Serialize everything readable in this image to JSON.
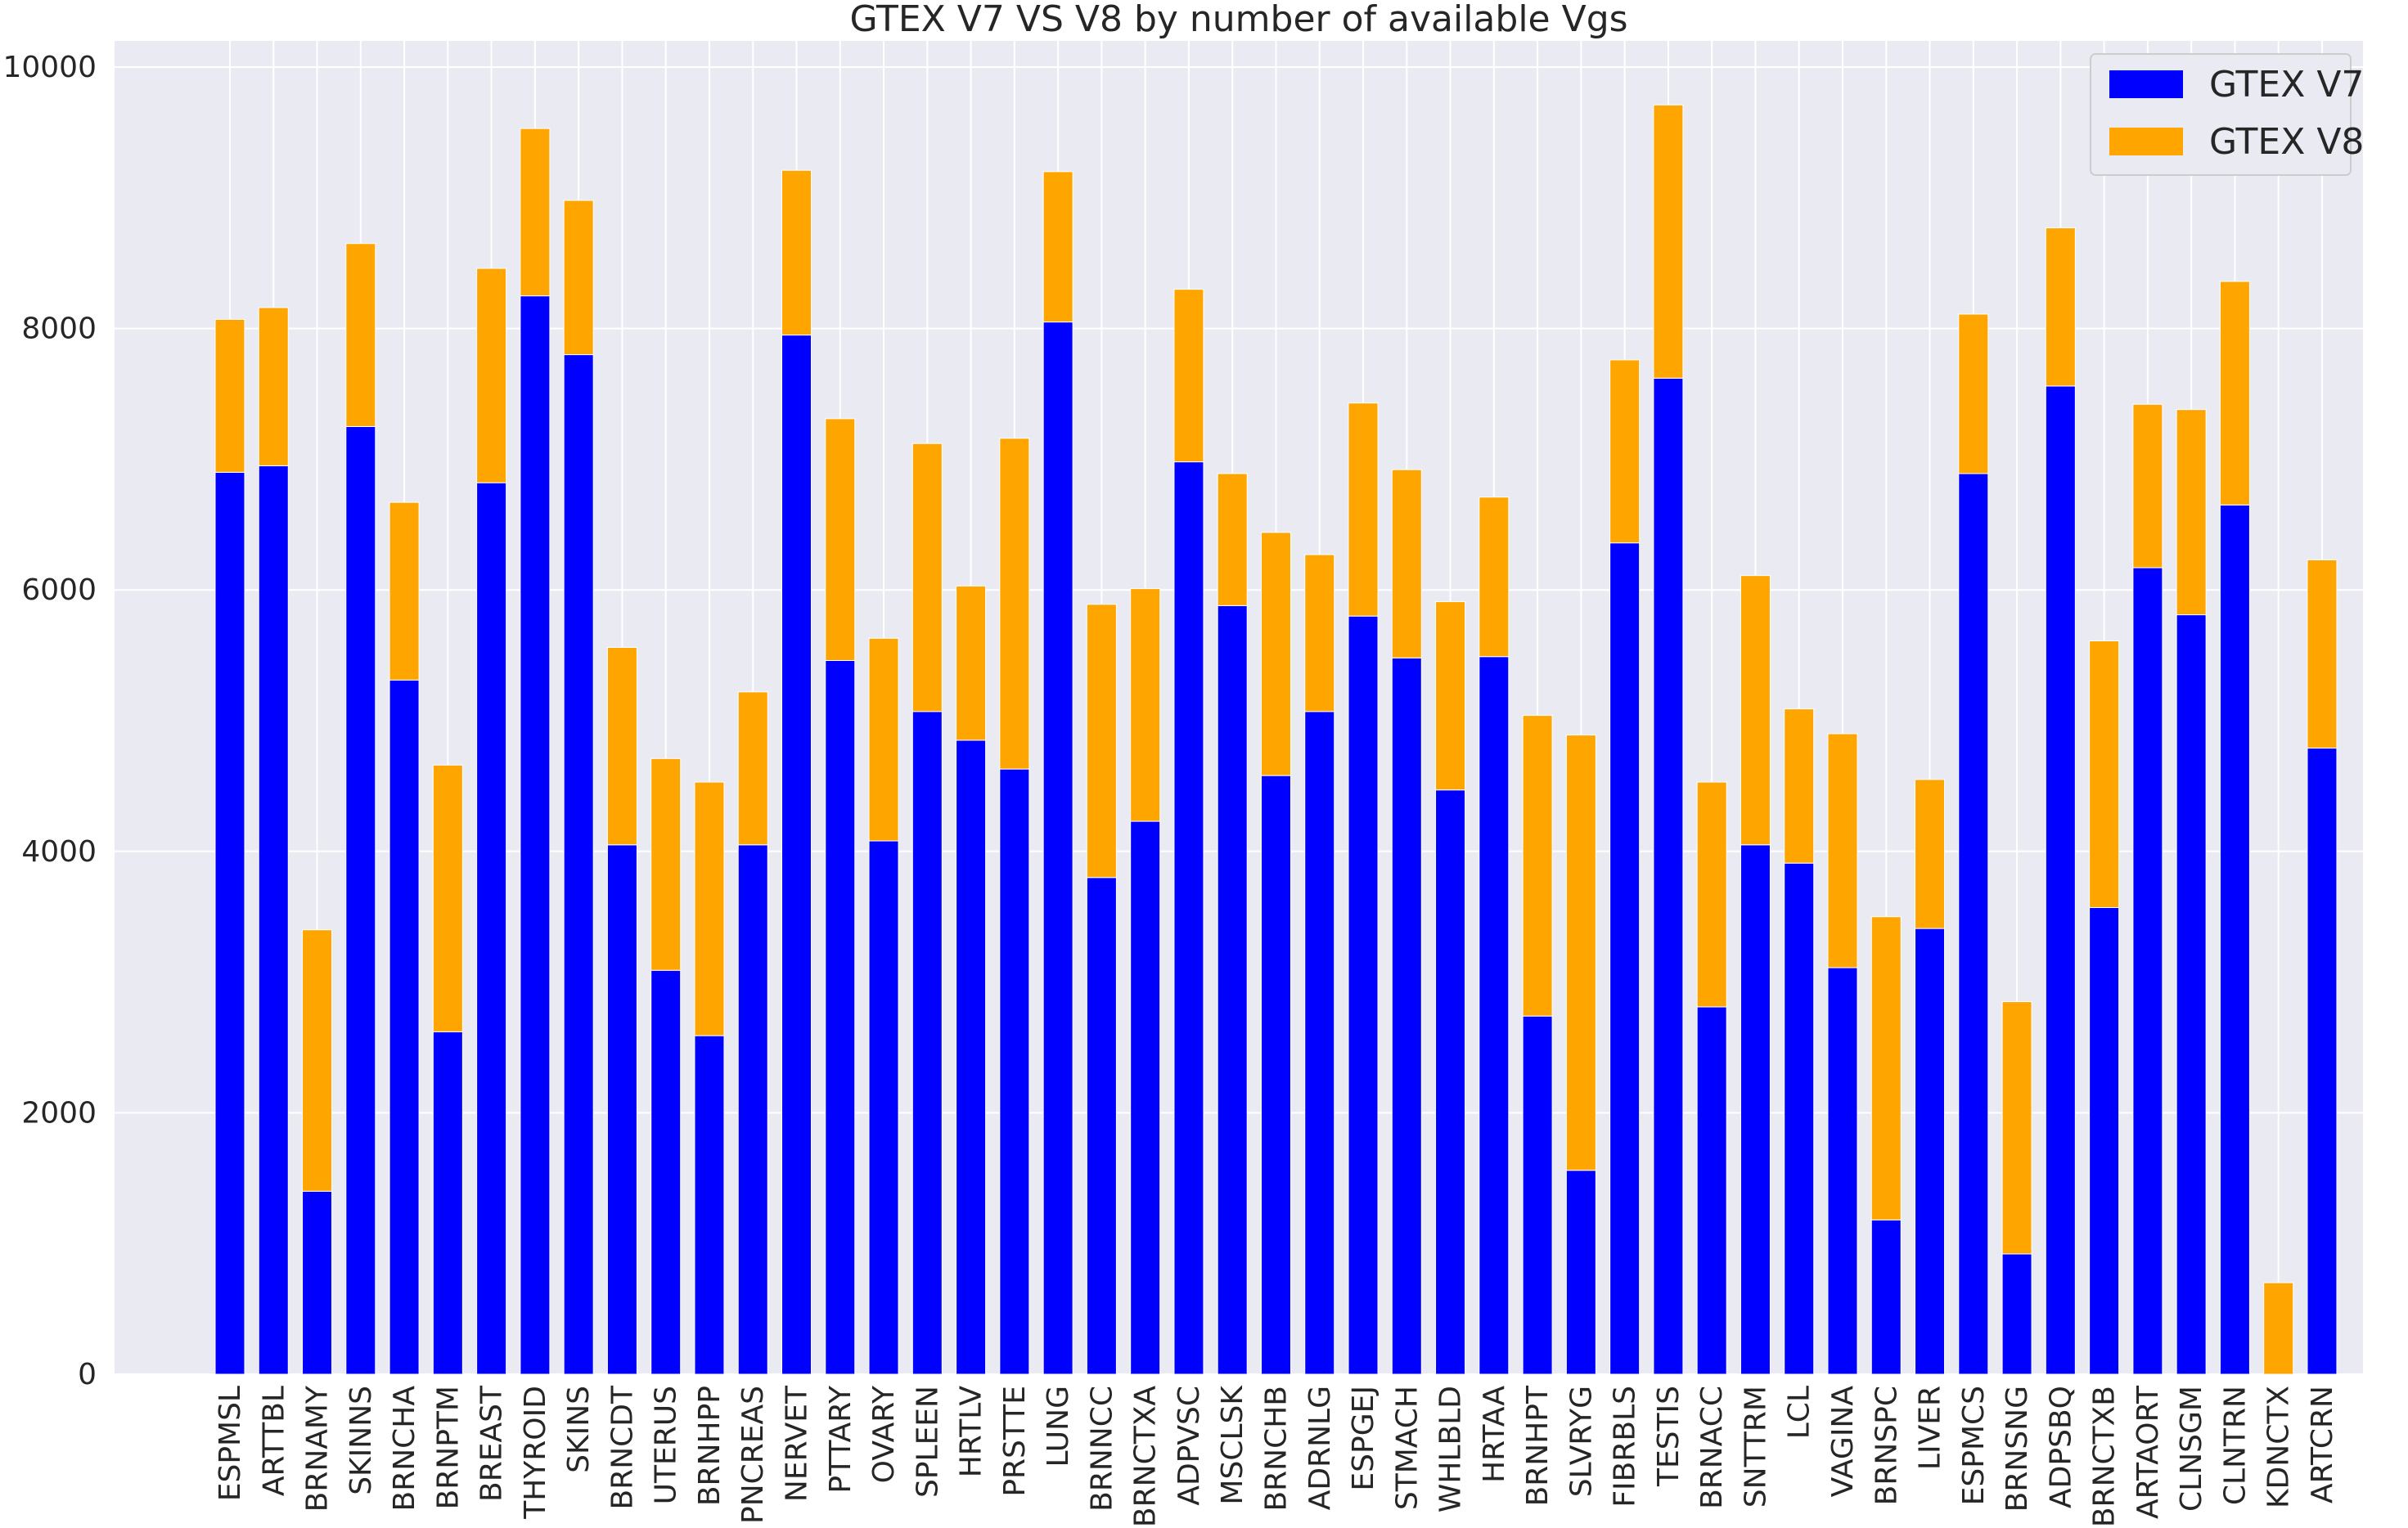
{
  "chart_data": {
    "type": "bar",
    "stacked": true,
    "title": "GTEX V7 VS V8 by number of available Vgs",
    "xlabel": "",
    "ylabel": "",
    "ylim": [
      0,
      10000
    ],
    "yticks": [
      0,
      2000,
      4000,
      6000,
      8000,
      10000
    ],
    "grid": true,
    "legend_position": "top-right",
    "categories": [
      "ESPMSL",
      "ARTTBL",
      "BRNAMY",
      "SKINNS",
      "BRNCHA",
      "BRNPTM",
      "BREAST",
      "THYROID",
      "SKINS",
      "BRNCDT",
      "UTERUS",
      "BRNHPP",
      "PNCREAS",
      "NERVET",
      "PTTARY",
      "OVARY",
      "SPLEEN",
      "HRTLV",
      "PRSTTE",
      "LUNG",
      "BRNNCC",
      "BRNCTXA",
      "ADPVSC",
      "MSCLSK",
      "BRNCHB",
      "ADRNLG",
      "ESPGEJ",
      "STMACH",
      "WHLBLD",
      "HRTAA",
      "BRNHPT",
      "SLVRYG",
      "FIBRBLS",
      "TESTIS",
      "BRNACC",
      "SNTTRM",
      "LCL",
      "VAGINA",
      "BRNSPC",
      "LIVER",
      "ESPMCS",
      "BRNSNG",
      "ADPSBQ",
      "BRNCTXB",
      "ARTAORT",
      "CLNSGM",
      "CLNTRN",
      "KDNCTX",
      "ARTCRN"
    ],
    "series": [
      {
        "name": "GTEX V7",
        "color": "#0000ff",
        "values": [
          6900,
          6950,
          1400,
          7250,
          5310,
          2620,
          6820,
          8250,
          7800,
          4050,
          3090,
          2590,
          4050,
          7950,
          5460,
          4080,
          5070,
          4850,
          4630,
          8050,
          3800,
          4230,
          6980,
          5880,
          4580,
          5070,
          5800,
          5480,
          4470,
          5490,
          2740,
          1560,
          6360,
          7620,
          2810,
          4050,
          3910,
          3110,
          1180,
          3410,
          6890,
          920,
          7560,
          3570,
          6170,
          5810,
          6650,
          0,
          4790
        ]
      },
      {
        "name": "GTEX V8",
        "color": "#ffa500",
        "values": [
          1170,
          1210,
          2000,
          1400,
          1360,
          2040,
          1640,
          1280,
          1180,
          1510,
          1620,
          1940,
          1170,
          1260,
          1850,
          1550,
          2050,
          1180,
          2530,
          1150,
          2090,
          1780,
          1320,
          1010,
          1860,
          1200,
          1630,
          1440,
          1440,
          1220,
          2300,
          3330,
          1400,
          2090,
          1720,
          2060,
          1180,
          1790,
          2320,
          1140,
          1220,
          1930,
          1210,
          2040,
          1250,
          1570,
          1710,
          700,
          1440
        ]
      }
    ]
  }
}
